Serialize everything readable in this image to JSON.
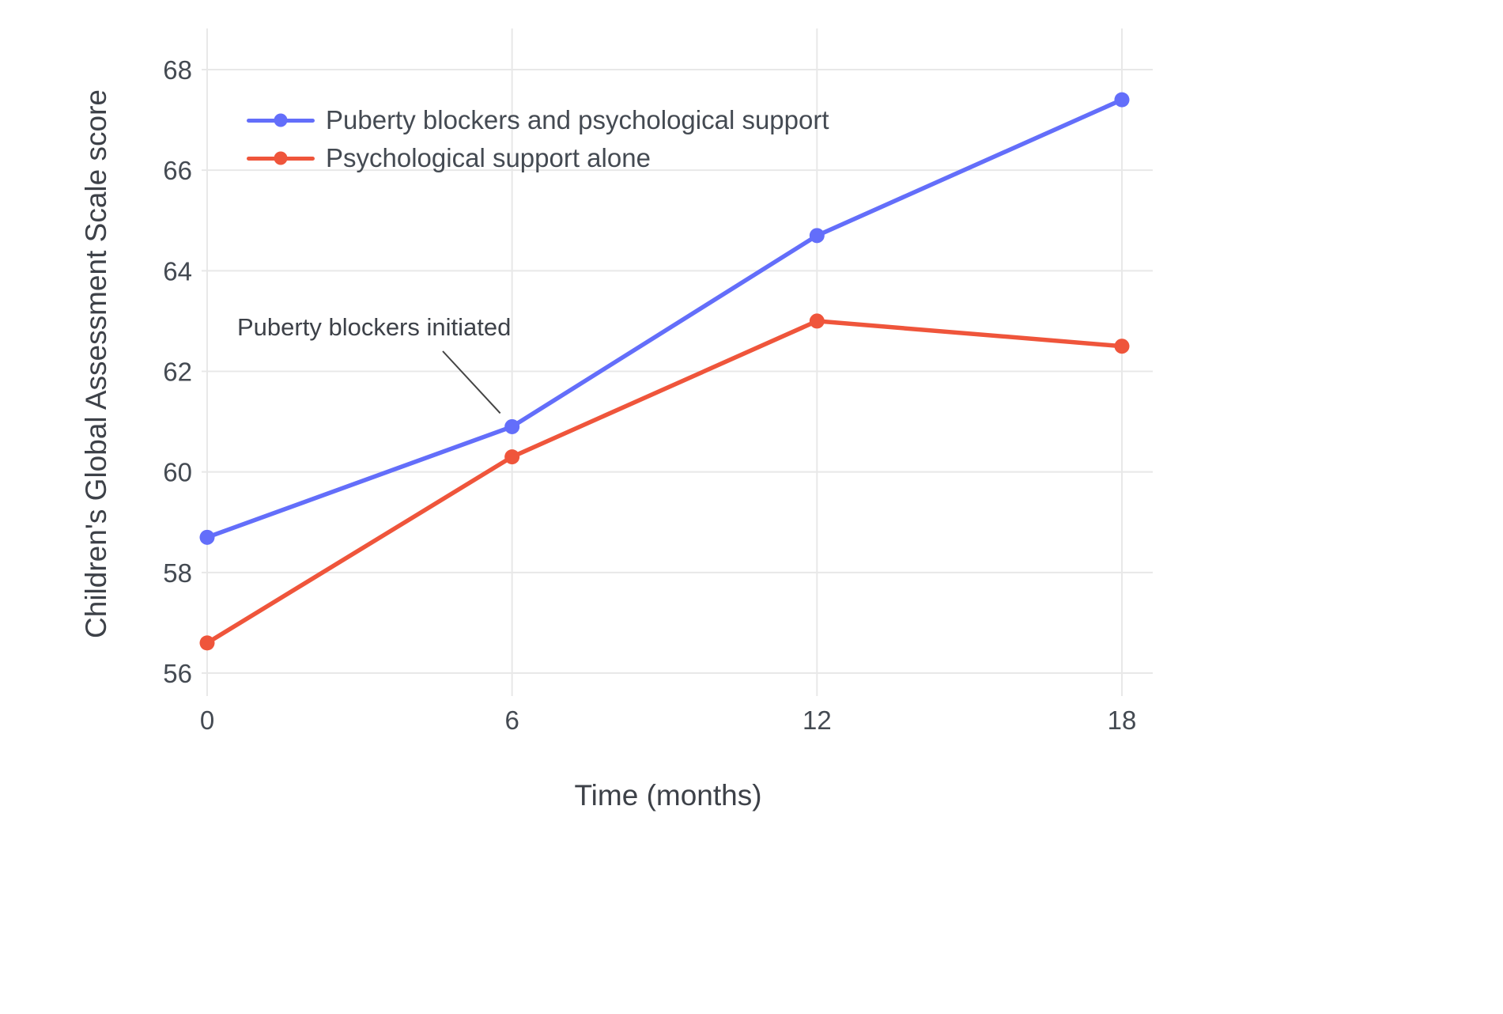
{
  "chart_data": {
    "type": "line",
    "title": "",
    "xlabel": "Time (months)",
    "ylabel": "Children's Global Assessment Scale score",
    "x": [
      0,
      6,
      12,
      18
    ],
    "x_ticks": [
      "0",
      "6",
      "12",
      "18"
    ],
    "y_ticks": [
      "56",
      "58",
      "60",
      "62",
      "64",
      "66",
      "68"
    ],
    "y_tick_values": [
      56,
      58,
      60,
      62,
      64,
      66,
      68
    ],
    "xlim": [
      0,
      18
    ],
    "ylim": [
      56,
      68
    ],
    "grid": true,
    "legend_position": "top-left-inside",
    "series": [
      {
        "name": "Puberty blockers and psychological support",
        "color": "#636EFA",
        "values": [
          58.7,
          60.9,
          64.7,
          67.4
        ]
      },
      {
        "name": "Psychological support alone",
        "color": "#EF553B",
        "values": [
          56.6,
          60.3,
          63.0,
          62.5
        ]
      }
    ],
    "annotation": {
      "text": "Puberty blockers initiated",
      "target_x": 6,
      "target_y": 60.9
    },
    "colors": {
      "grid": "#E8E8E8",
      "tick_label": "#444a52",
      "annotation_line": "#444444"
    }
  }
}
